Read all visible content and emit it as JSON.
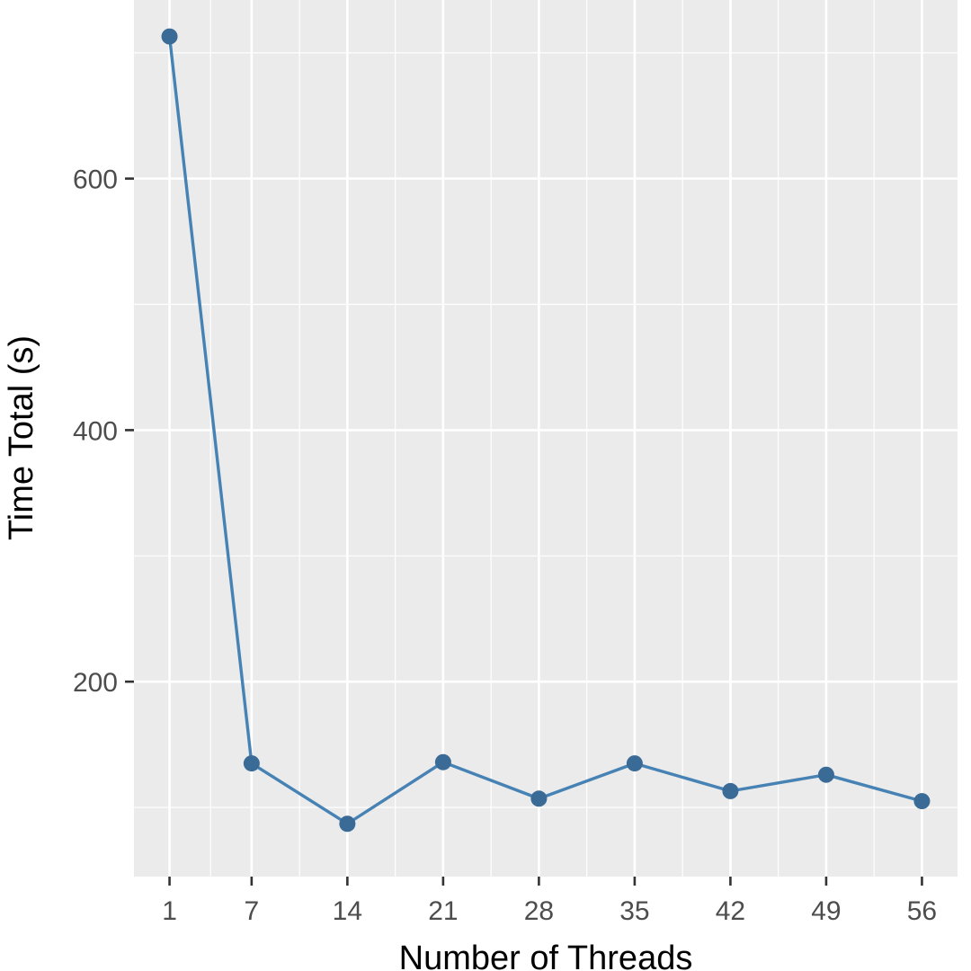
{
  "chart_data": {
    "type": "line",
    "title": "",
    "xlabel": "Number of Threads",
    "ylabel": "Time Total (s)",
    "x": [
      1,
      7,
      14,
      21,
      28,
      35,
      42,
      49,
      56
    ],
    "series": [
      {
        "values": [
          713,
          135,
          87,
          136,
          107,
          135,
          113,
          126,
          105
        ]
      }
    ],
    "x_ticks": [
      1,
      7,
      14,
      21,
      28,
      35,
      42,
      49,
      56
    ],
    "y_ticks": [
      200,
      400,
      600
    ],
    "xlim": [
      -1.6,
      58.6
    ],
    "ylim": [
      45,
      742
    ],
    "grid": true,
    "colors": {
      "panel": "#ebebeb",
      "grid": "#ffffff",
      "line": "#4682b4",
      "point": "#3a6a96",
      "tick": "#333333"
    }
  }
}
